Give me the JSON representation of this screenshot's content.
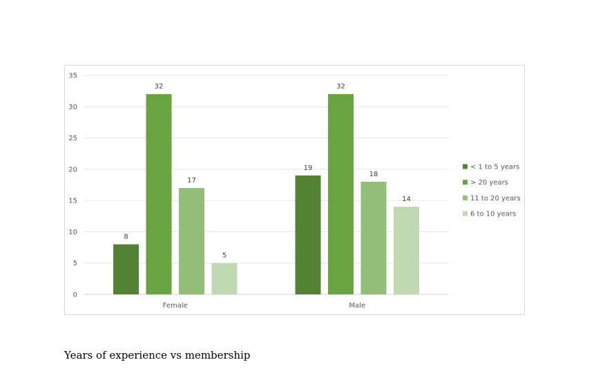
{
  "caption": "Years of experience vs membership",
  "chart_data": {
    "type": "bar",
    "categories": [
      "Female",
      "Male"
    ],
    "series": [
      {
        "name": "< 1 to 5 years",
        "values": [
          8,
          19
        ],
        "color": "#548235"
      },
      {
        "name": "> 20 years",
        "values": [
          32,
          32
        ],
        "color": "#6aa342"
      },
      {
        "name": "11 to 20 years",
        "values": [
          17,
          18
        ],
        "color": "#93bf7a"
      },
      {
        "name": "6 to 10 years",
        "values": [
          5,
          14
        ],
        "color": "#c0d9b3"
      }
    ],
    "ylim": [
      0,
      35
    ],
    "yticks": [
      0,
      5,
      10,
      15,
      20,
      25,
      30,
      35
    ],
    "grid": true,
    "legend": "right",
    "data_labels": true
  }
}
